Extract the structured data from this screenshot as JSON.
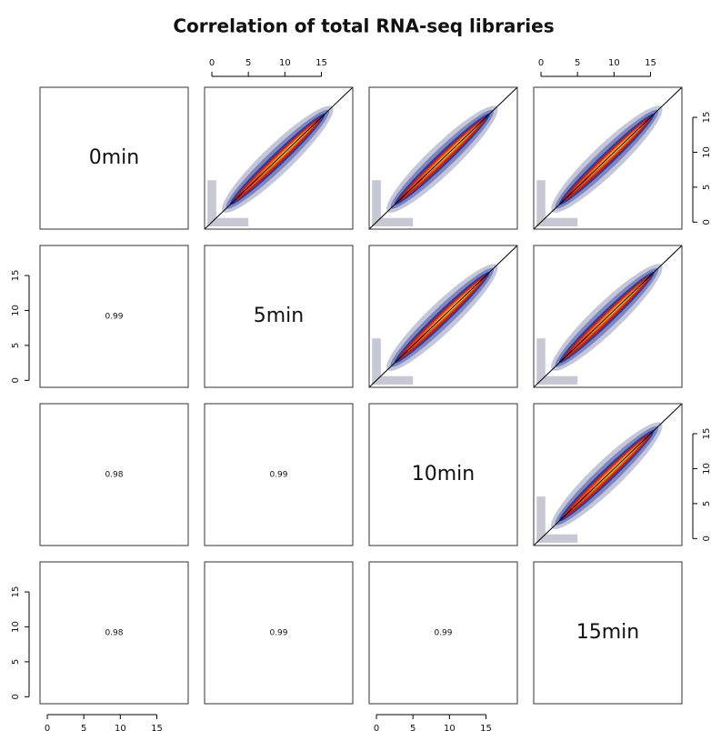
{
  "chart_data": {
    "type": "pairs",
    "title": "Correlation of total RNA-seq libraries",
    "variables": [
      "0min",
      "5min",
      "10min",
      "15min"
    ],
    "correlations": [
      [
        0.99
      ],
      [
        0.98,
        0.99
      ],
      [
        0.98,
        0.99,
        0.99
      ]
    ],
    "xlim": [
      -1,
      19.3
    ],
    "ylim": [
      -1,
      19.3
    ],
    "xticks": [
      0,
      5,
      10,
      15
    ],
    "yticks": [
      0,
      5,
      10,
      15
    ]
  }
}
